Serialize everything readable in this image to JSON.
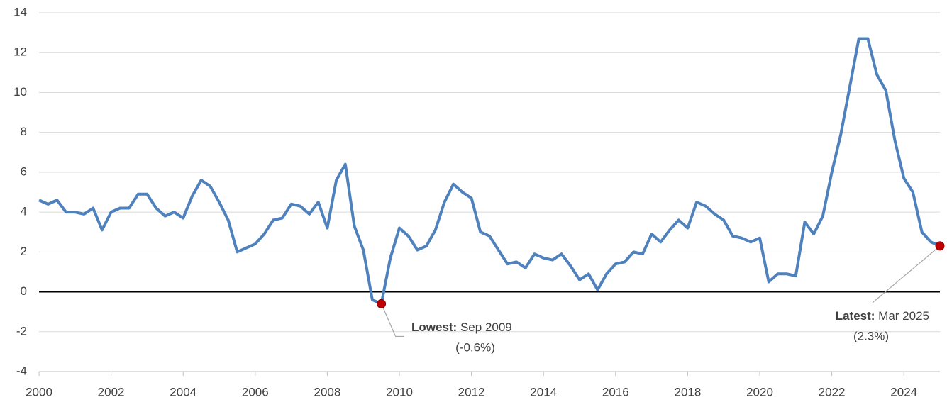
{
  "chart_data": {
    "type": "line",
    "x": [
      2000,
      2000.25,
      2000.5,
      2000.75,
      2001,
      2001.25,
      2001.5,
      2001.75,
      2002,
      2002.25,
      2002.5,
      2002.75,
      2003,
      2003.25,
      2003.5,
      2003.75,
      2004,
      2004.25,
      2004.5,
      2004.75,
      2005,
      2005.25,
      2005.5,
      2005.75,
      2006,
      2006.25,
      2006.5,
      2006.75,
      2007,
      2007.25,
      2007.5,
      2007.75,
      2008,
      2008.25,
      2008.5,
      2008.75,
      2009,
      2009.25,
      2009.5,
      2009.75,
      2010,
      2010.25,
      2010.5,
      2010.75,
      2011,
      2011.25,
      2011.5,
      2011.75,
      2012,
      2012.25,
      2012.5,
      2012.75,
      2013,
      2013.25,
      2013.5,
      2013.75,
      2014,
      2014.25,
      2014.5,
      2014.75,
      2015,
      2015.25,
      2015.5,
      2015.75,
      2016,
      2016.25,
      2016.5,
      2016.75,
      2017,
      2017.25,
      2017.5,
      2017.75,
      2018,
      2018.25,
      2018.5,
      2018.75,
      2019,
      2019.25,
      2019.5,
      2019.75,
      2020,
      2020.25,
      2020.5,
      2020.75,
      2021,
      2021.25,
      2021.5,
      2021.75,
      2022,
      2022.25,
      2022.5,
      2022.75,
      2023,
      2023.25,
      2023.5,
      2023.75,
      2024,
      2024.25,
      2024.5,
      2024.75,
      2025
    ],
    "series": [
      {
        "color": "#4f81bd",
        "values": [
          4.6,
          4.4,
          4.6,
          4.0,
          4.0,
          3.9,
          4.2,
          3.1,
          4.0,
          4.2,
          4.2,
          4.9,
          4.9,
          4.2,
          3.8,
          4.0,
          3.7,
          4.8,
          5.6,
          5.3,
          4.5,
          3.6,
          2.0,
          2.2,
          2.4,
          2.9,
          3.6,
          3.7,
          4.4,
          4.3,
          3.9,
          4.5,
          3.2,
          5.6,
          6.4,
          3.3,
          2.1,
          -0.4,
          -0.6,
          1.7,
          3.2,
          2.8,
          2.1,
          2.3,
          3.1,
          4.5,
          5.4,
          5.0,
          4.7,
          3.0,
          2.8,
          2.1,
          1.4,
          1.5,
          1.2,
          1.9,
          1.7,
          1.6,
          1.9,
          1.3,
          0.6,
          0.9,
          0.1,
          0.9,
          1.4,
          1.5,
          2.0,
          1.9,
          2.9,
          2.5,
          3.1,
          3.6,
          3.2,
          4.5,
          4.3,
          3.9,
          3.6,
          2.8,
          2.7,
          2.5,
          2.7,
          0.5,
          0.9,
          0.9,
          0.8,
          3.5,
          2.9,
          3.8,
          6.0,
          7.9,
          10.3,
          12.7,
          12.7,
          10.9,
          10.1,
          7.6,
          5.7,
          5.0,
          3.0,
          2.5,
          2.3
        ]
      }
    ],
    "xlim": [
      2000,
      2025
    ],
    "xticks": [
      2000,
      2002,
      2004,
      2006,
      2008,
      2010,
      2012,
      2014,
      2016,
      2018,
      2020,
      2022,
      2024
    ],
    "ylim": [
      -4,
      14
    ],
    "yticks": [
      -4,
      -2,
      0,
      2,
      4,
      6,
      8,
      10,
      12,
      14
    ],
    "grid": true,
    "marker_color": "#c00000",
    "annotations": [
      {
        "label": "Lowest:",
        "text": "Sep 2009",
        "value": "(-0.6%)"
      },
      {
        "label": "Latest:",
        "text": "Mar 2025",
        "value": "(2.3%)"
      }
    ]
  }
}
